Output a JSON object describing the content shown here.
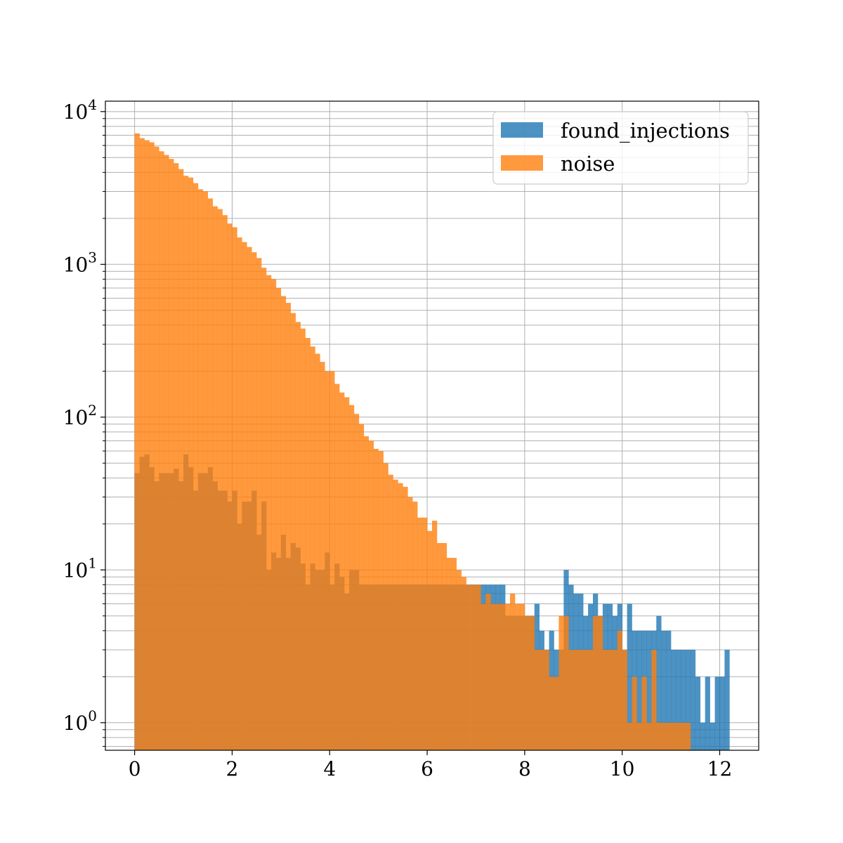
{
  "chart_data": {
    "type": "histogram",
    "title": "",
    "xlabel": "",
    "ylabel": "",
    "yscale": "log",
    "xlim": [
      -0.6,
      12.8
    ],
    "ylim": [
      0.66,
      11700
    ],
    "grid": true,
    "grid_minor_y": true,
    "legend_position": "top-right",
    "x_ticks": [
      0,
      2,
      4,
      6,
      8,
      10,
      12
    ],
    "y_ticks": [
      {
        "base": "10",
        "exp": "0",
        "value": 1
      },
      {
        "base": "10",
        "exp": "1",
        "value": 10
      },
      {
        "base": "10",
        "exp": "2",
        "value": 100
      },
      {
        "base": "10",
        "exp": "3",
        "value": 1000
      },
      {
        "base": "10",
        "exp": "4",
        "value": 10000
      }
    ],
    "series": [
      {
        "name": "found_injections",
        "color": "#1f77b4",
        "opacity": 0.8,
        "bin_start": 0.0,
        "bin_width": 0.1,
        "counts": [
          43,
          55,
          57,
          47,
          38,
          43,
          43,
          43,
          46,
          38,
          57,
          47,
          33,
          43,
          43,
          47,
          38,
          33,
          33,
          28,
          33,
          20,
          28,
          28,
          33,
          17,
          28,
          10,
          13,
          12,
          17,
          12,
          15,
          14,
          11,
          8,
          11,
          10,
          10,
          13,
          8,
          11,
          9,
          7,
          10,
          10,
          8,
          8,
          8,
          8,
          8,
          8,
          8,
          8,
          8,
          8,
          8,
          8,
          8,
          8,
          8,
          8,
          8,
          8,
          8,
          8,
          8,
          8,
          8,
          8,
          8,
          8,
          8,
          8,
          8,
          8,
          5,
          5,
          5,
          5,
          5,
          5,
          6,
          4,
          3,
          4,
          3,
          3,
          10,
          8,
          7,
          7,
          5,
          6,
          7,
          5,
          6,
          6,
          5,
          6,
          3,
          6,
          4,
          4,
          4,
          4,
          4,
          5,
          4,
          4,
          3,
          3,
          3,
          3,
          3,
          2,
          1,
          2,
          1,
          2,
          2,
          3
        ]
      },
      {
        "name": "noise",
        "color": "#ff7f0e",
        "opacity": 0.8,
        "bin_start": 0.0,
        "bin_width": 0.1,
        "counts": [
          7200,
          6700,
          6500,
          6300,
          5900,
          5500,
          5200,
          4900,
          4600,
          4200,
          3800,
          3700,
          3400,
          3100,
          3000,
          2700,
          2400,
          2300,
          2100,
          1850,
          1750,
          1500,
          1400,
          1300,
          1200,
          1100,
          950,
          850,
          800,
          700,
          620,
          560,
          480,
          420,
          380,
          330,
          290,
          260,
          230,
          200,
          200,
          165,
          145,
          135,
          120,
          105,
          90,
          75,
          70,
          62,
          60,
          50,
          42,
          39,
          37,
          35,
          30,
          28,
          22,
          22,
          18,
          21,
          15,
          15,
          12,
          12,
          10,
          9,
          8,
          8,
          8,
          6,
          7,
          6,
          6,
          6,
          6,
          7,
          6,
          6,
          5,
          5,
          3,
          3,
          3,
          2,
          2,
          5,
          5,
          3,
          3,
          3,
          3,
          3,
          5,
          5,
          3,
          3,
          3,
          4,
          3,
          1,
          2,
          1,
          2,
          1,
          3,
          1,
          1,
          1,
          1,
          1,
          1,
          1,
          0,
          0,
          0,
          0,
          0,
          0,
          0,
          0,
          0,
          0,
          0,
          0,
          0,
          0,
          0,
          0,
          0,
          0,
          0,
          0,
          0,
          0,
          0,
          0,
          0,
          0,
          0,
          0,
          0,
          0,
          0,
          0,
          0,
          0,
          0,
          0,
          0,
          0,
          0,
          0,
          0,
          0,
          0,
          0,
          0,
          0,
          0,
          0,
          0,
          0,
          0,
          0,
          0,
          0,
          0,
          0,
          0,
          0,
          0,
          0,
          0,
          0,
          0,
          0,
          0,
          0,
          0,
          0,
          0,
          0,
          0,
          0,
          0,
          0,
          0,
          0,
          0,
          0,
          0,
          0,
          0,
          0,
          0,
          0,
          0,
          0
        ]
      }
    ]
  }
}
